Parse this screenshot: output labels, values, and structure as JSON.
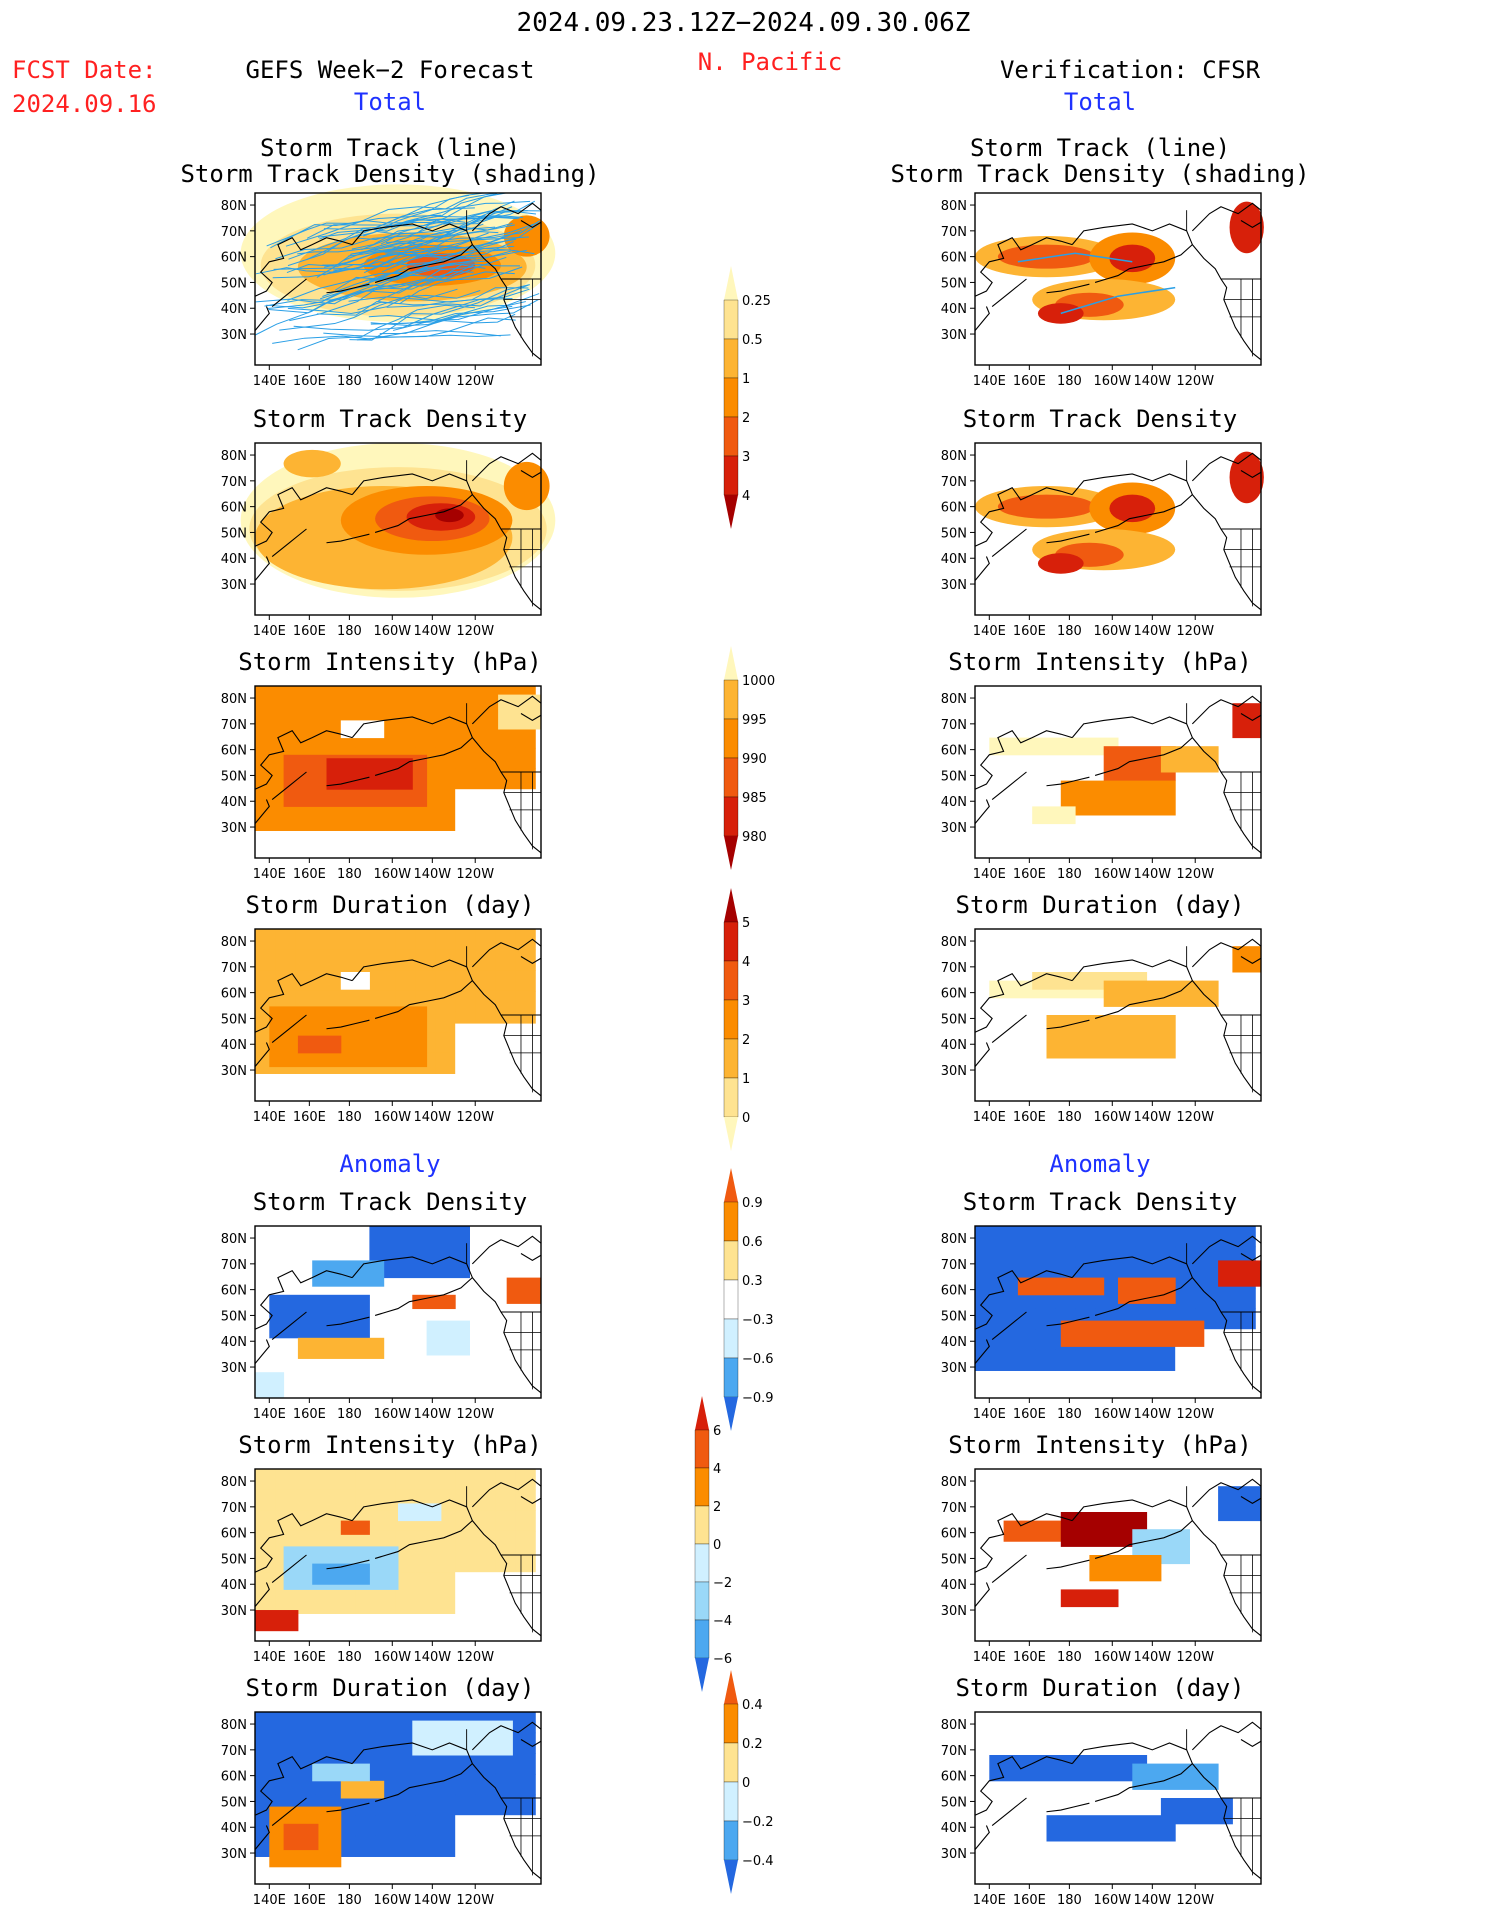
{
  "header": {
    "date_range": "2024.09.23.12Z−2024.09.30.06Z",
    "fcst_date_label": "FCST Date:",
    "fcst_date_value": "2024.09.16",
    "forecast_title": "GEFS Week−2 Forecast",
    "region": "N. Pacific",
    "verification_title": "Verification: CFSR"
  },
  "sections": {
    "total": "Total",
    "anomaly": "Anomaly"
  },
  "panel_titles": {
    "track_line": "Storm Track (line)",
    "track_shading": "Storm Track Density (shading)",
    "density": "Storm Track Density",
    "intensity": "Storm Intensity (hPa)",
    "duration": "Storm Duration (day)"
  },
  "axes": {
    "lat_ticks": [
      "80N",
      "70N",
      "60N",
      "50N",
      "40N",
      "30N"
    ],
    "lon_ticks": [
      "140E",
      "160E",
      "180",
      "160W",
      "140W",
      "120W"
    ]
  },
  "colors": {
    "red": "#ff2020",
    "blue": "#1e32ff",
    "warm": [
      "#fff7bc",
      "#fee391",
      "#fdb433",
      "#fb8c00",
      "#f05a10",
      "#d7200a",
      "#a50000"
    ],
    "cool": [
      "#d0f0ff",
      "#9ad8f8",
      "#4ca8f0",
      "#2468e0"
    ],
    "track_line": "#2a9fe6"
  },
  "chart_data": [
    {
      "type": "heatmap",
      "name": "colorbar-storm-track-density",
      "levels": [
        "0.25",
        "0.5",
        "1",
        "2",
        "3",
        "4"
      ],
      "colors": [
        "#fff7bc",
        "#fee391",
        "#fdb433",
        "#fb8c00",
        "#f05a10",
        "#d7200a",
        "#a50000"
      ]
    },
    {
      "type": "heatmap",
      "name": "colorbar-storm-intensity",
      "levels": [
        "1000",
        "995",
        "990",
        "985",
        "980"
      ],
      "colors": [
        "#fff7bc",
        "#fdb433",
        "#fb8c00",
        "#f05a10",
        "#d7200a",
        "#a50000"
      ]
    },
    {
      "type": "heatmap",
      "name": "colorbar-storm-duration",
      "levels": [
        "5",
        "4",
        "3",
        "2",
        "1",
        "0"
      ],
      "colors": [
        "#a50000",
        "#d7200a",
        "#f05a10",
        "#fb8c00",
        "#fdb433",
        "#fee391",
        "#fff7bc"
      ]
    },
    {
      "type": "heatmap",
      "name": "colorbar-density-anomaly",
      "levels": [
        "0.9",
        "0.6",
        "0.3",
        "−0.3",
        "−0.6",
        "−0.9"
      ],
      "colors": [
        "#f05a10",
        "#fb8c00",
        "#fee391",
        "#ffffff",
        "#d0f0ff",
        "#4ca8f0",
        "#2468e0"
      ]
    },
    {
      "type": "heatmap",
      "name": "colorbar-intensity-anomaly",
      "levels": [
        "6",
        "4",
        "2",
        "0",
        "−2",
        "−4",
        "−6"
      ],
      "colors": [
        "#d7200a",
        "#f05a10",
        "#fb8c00",
        "#fee391",
        "#d0f0ff",
        "#9ad8f8",
        "#4ca8f0",
        "#2468e0"
      ]
    },
    {
      "type": "heatmap",
      "name": "colorbar-duration-anomaly",
      "levels": [
        "0.4",
        "0.2",
        "0",
        "−0.2",
        "−0.4"
      ],
      "colors": [
        "#f05a10",
        "#fb8c00",
        "#fee391",
        "#d0f0ff",
        "#4ca8f0",
        "#2468e0"
      ]
    }
  ]
}
